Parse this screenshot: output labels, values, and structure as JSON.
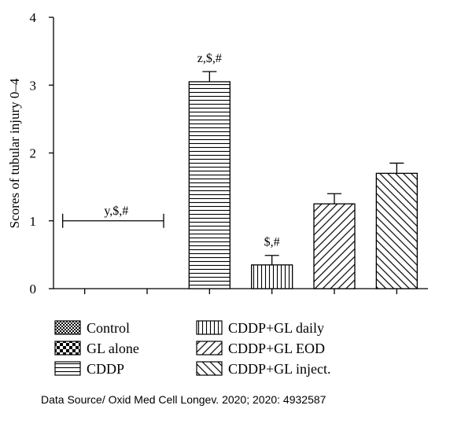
{
  "chart_data": {
    "type": "bar",
    "ylabel": "Scores of tubular injury 0–4",
    "ylim": [
      0,
      4
    ],
    "yticks": [
      0,
      1,
      2,
      3,
      4
    ],
    "categories": [
      "Control",
      "GL alone",
      "CDDP",
      "CDDP+GL daily",
      "CDDP+GL EOD",
      "CDDP+GL inject."
    ],
    "values": [
      0,
      0,
      3.05,
      0.35,
      1.25,
      1.7
    ],
    "errors": [
      0,
      0,
      0.15,
      0.14,
      0.15,
      0.15
    ],
    "patterns": [
      "checker-fine",
      "checker-coarse",
      "horizontal",
      "vertical",
      "diagonal-right",
      "diagonal-left"
    ],
    "annotations": [
      {
        "text": "y,$,#",
        "span": [
          0,
          1
        ],
        "y": 1.0
      },
      {
        "text": "z,$,#",
        "bar": 2
      },
      {
        "text": "$,#",
        "bar": 3
      }
    ],
    "legend": {
      "position": "bottom",
      "columns": [
        [
          "Control",
          "GL alone",
          "CDDP"
        ],
        [
          "CDDP+GL daily",
          "CDDP+GL EOD",
          "CDDP+GL inject."
        ]
      ]
    },
    "grid": false,
    "colors": {
      "bar_stroke": "#000000",
      "bar_fill": "#ffffff"
    }
  },
  "source": "Data Source/ Oxid Med Cell Longev. 2020; 2020: 4932587"
}
